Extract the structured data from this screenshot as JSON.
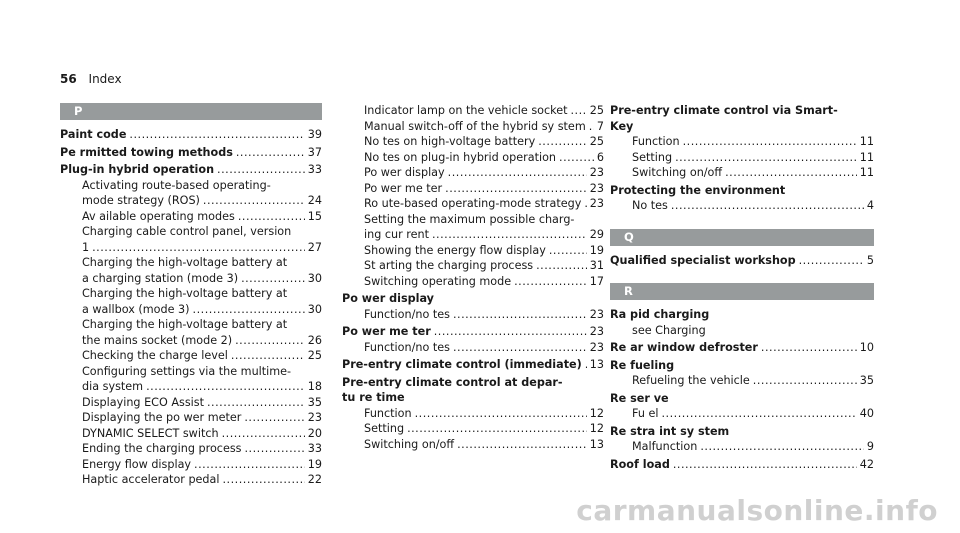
{
  "header": {
    "page_number": "56",
    "title": "Index"
  },
  "columns": [
    [
      {
        "type": "section",
        "letter": "P"
      },
      {
        "type": "entry",
        "lines": [
          {
            "text": "Paint code",
            "page": "39",
            "bold": true
          }
        ]
      },
      {
        "type": "entry",
        "lines": [
          {
            "text": "Pe rmitted towing methods",
            "page": "37",
            "bold": true
          }
        ]
      },
      {
        "type": "entry",
        "lines": [
          {
            "text": "Plug-in hybrid operation",
            "page": "33",
            "bold": true
          },
          {
            "text": "Activating route-based operating-",
            "sub": true
          },
          {
            "text": "mode strategy (ROS)",
            "page": "24",
            "sub": true
          },
          {
            "text": "Av ailable operating modes",
            "page": "15",
            "sub": true
          },
          {
            "text": "Charging cable control panel, version",
            "sub": true
          },
          {
            "text": "1",
            "page": "27",
            "sub": true
          },
          {
            "text": "Charging the high-voltage battery at",
            "sub": true
          },
          {
            "text": "a charging station (mode 3)",
            "page": "30",
            "sub": true
          },
          {
            "text": "Charging the high-voltage battery at",
            "sub": true
          },
          {
            "text": "a wallbox (mode 3)",
            "page": "30",
            "sub": true
          },
          {
            "text": "Charging the high-voltage battery at",
            "sub": true
          },
          {
            "text": "the mains socket (mode 2)",
            "page": "26",
            "sub": true
          },
          {
            "text": "Checking the charge level",
            "page": "25",
            "sub": true
          },
          {
            "text": "Configuring settings via the multime-",
            "sub": true
          },
          {
            "text": "dia system",
            "page": "18",
            "sub": true
          },
          {
            "text": "Displaying ECO Assist",
            "page": "35",
            "sub": true
          },
          {
            "text": "Displaying the po wer meter",
            "page": "23",
            "sub": true
          },
          {
            "text": "DYNAMIC SELECT switch",
            "page": "20",
            "sub": true
          },
          {
            "text": "Ending the charging process",
            "page": "33",
            "sub": true
          },
          {
            "text": "Energy flow display",
            "page": "19",
            "sub": true
          },
          {
            "text": "Haptic accelerator pedal",
            "page": "22",
            "sub": true
          }
        ]
      }
    ],
    [
      {
        "type": "entry",
        "lines": [
          {
            "text": "Indicator lamp on the vehicle socket",
            "page": "25",
            "sub": true
          },
          {
            "text": "Manual switch-off of the hybrid sy stem",
            "page": "7",
            "sub": true
          },
          {
            "text": "No tes on high-voltage battery",
            "page": "25",
            "sub": true
          },
          {
            "text": "No tes on plug-in hybrid operation",
            "page": "6",
            "sub": true
          },
          {
            "text": "Po wer display",
            "page": "23",
            "sub": true
          },
          {
            "text": "Po wer me ter",
            "page": "23",
            "sub": true
          },
          {
            "text": "Ro ute-based operating-mode strategy",
            "page": "23",
            "sub": true
          },
          {
            "text": "Setting the maximum possible charg-",
            "sub": true
          },
          {
            "text": "ing cur rent",
            "page": "29",
            "sub": true
          },
          {
            "text": "Showing the energy flow display",
            "page": "19",
            "sub": true
          },
          {
            "text": "St arting the charging process",
            "page": "31",
            "sub": true
          },
          {
            "text": "Switching operating mode",
            "page": "17",
            "sub": true
          }
        ]
      },
      {
        "type": "entry",
        "lines": [
          {
            "text": "Po wer display",
            "bold": true
          },
          {
            "text": "Function/no tes",
            "page": "23",
            "sub": true
          }
        ]
      },
      {
        "type": "entry",
        "lines": [
          {
            "text": "Po wer me ter",
            "page": "23",
            "bold": true
          },
          {
            "text": "Function/no tes",
            "page": "23",
            "sub": true
          }
        ]
      },
      {
        "type": "entry",
        "lines": [
          {
            "text": "Pre-entry climate control (immediate)",
            "page": "13",
            "bold": true
          }
        ]
      },
      {
        "type": "entry",
        "lines": [
          {
            "text": "Pre-entry climate control at depar-",
            "bold": true
          },
          {
            "text": "tu re time",
            "bold": true
          },
          {
            "text": "Function",
            "page": "12",
            "sub": true
          },
          {
            "text": "Setting",
            "page": "12",
            "sub": true
          },
          {
            "text": "Switching on/off",
            "page": "13",
            "sub": true
          }
        ]
      }
    ],
    [
      {
        "type": "entry",
        "lines": [
          {
            "text": "Pre-entry climate control via Smart-",
            "bold": true
          },
          {
            "text": "Key",
            "bold": true
          },
          {
            "text": "Function",
            "page": "11",
            "sub": true
          },
          {
            "text": "Setting",
            "page": "11",
            "sub": true
          },
          {
            "text": "Switching on/off",
            "page": "11",
            "sub": true
          }
        ]
      },
      {
        "type": "entry",
        "lines": [
          {
            "text": "Protecting the environment",
            "bold": true
          },
          {
            "text": "No tes",
            "page": "4",
            "sub": true
          }
        ]
      },
      {
        "type": "spacer"
      },
      {
        "type": "section",
        "letter": "Q"
      },
      {
        "type": "entry",
        "lines": [
          {
            "text": "Qualified specialist workshop",
            "page": "5",
            "bold": true
          }
        ]
      },
      {
        "type": "spacer"
      },
      {
        "type": "section",
        "letter": "R"
      },
      {
        "type": "entry",
        "lines": [
          {
            "text": "Ra pid charging",
            "bold": true
          },
          {
            "text": "see Charging",
            "sub": true
          }
        ]
      },
      {
        "type": "entry",
        "lines": [
          {
            "text": "Re ar window defroster",
            "page": "10",
            "bold": true
          }
        ]
      },
      {
        "type": "entry",
        "lines": [
          {
            "text": "Re fueling",
            "bold": true
          },
          {
            "text": "Refueling the vehicle",
            "page": "35",
            "sub": true
          }
        ]
      },
      {
        "type": "entry",
        "lines": [
          {
            "text": "Re ser ve",
            "bold": true
          },
          {
            "text": "Fu el",
            "page": "40",
            "sub": true
          }
        ]
      },
      {
        "type": "entry",
        "lines": [
          {
            "text": "Re stra int sy stem",
            "bold": true
          },
          {
            "text": "Malfunction",
            "page": "9",
            "sub": true
          }
        ]
      },
      {
        "type": "entry",
        "lines": [
          {
            "text": "Roof load",
            "page": "42",
            "bold": true
          }
        ]
      }
    ]
  ],
  "watermark": "carmanualsonline.info"
}
